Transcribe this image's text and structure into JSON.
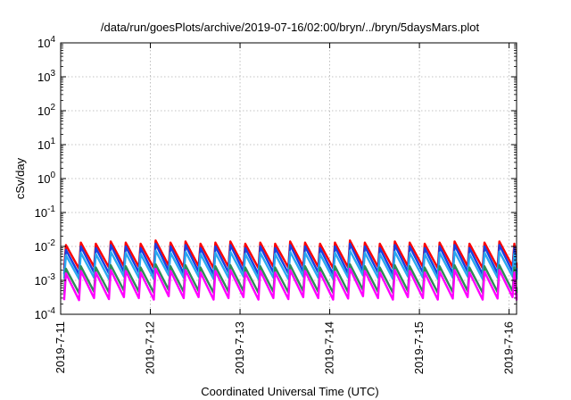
{
  "chart_data": {
    "type": "line",
    "title": "/data/run/goesPlots/archive/2019-07-16/02:00/bryn/../bryn/5daysMars.plot",
    "xlabel": "Coordinated Universal Time (UTC)",
    "ylabel": "cSv/day",
    "yscale": "log",
    "ylim": [
      0.0001,
      10000
    ],
    "xlim": [
      "2019-07-11T00:00",
      "2019-07-16T02:00"
    ],
    "y_ticks": [
      {
        "base": "10",
        "exp": "-4"
      },
      {
        "base": "10",
        "exp": "-3"
      },
      {
        "base": "10",
        "exp": "-2"
      },
      {
        "base": "10",
        "exp": "-1"
      },
      {
        "base": "10",
        "exp": "0"
      },
      {
        "base": "10",
        "exp": "1"
      },
      {
        "base": "10",
        "exp": "2"
      },
      {
        "base": "10",
        "exp": "3"
      },
      {
        "base": "10",
        "exp": "4"
      }
    ],
    "x_ticks": [
      "2019-7-11",
      "2019-7-12",
      "2019-7-13",
      "2019-7-14",
      "2019-7-15",
      "2019-7-16"
    ],
    "grid": true,
    "legend": "none",
    "cycle_hours": 4.0,
    "series": [
      {
        "color": "#ff0000",
        "peaks": [
          0.011,
          0.013,
          0.012,
          0.014,
          0.013,
          0.012,
          0.015,
          0.013,
          0.014,
          0.012,
          0.013,
          0.014,
          0.012,
          0.013,
          0.012,
          0.014,
          0.013,
          0.012,
          0.013,
          0.015,
          0.013,
          0.012,
          0.014,
          0.013,
          0.012,
          0.013,
          0.014,
          0.012,
          0.013,
          0.014,
          0.012,
          0.013,
          0.018,
          0.013,
          0.011
        ],
        "troughs": [
          0.0022,
          0.0025,
          0.0024,
          0.0026,
          0.0025,
          0.0023,
          0.0027,
          0.0024,
          0.0026,
          0.0023,
          0.0025,
          0.0026,
          0.0023,
          0.0025,
          0.0024,
          0.0026,
          0.0025,
          0.0023,
          0.0024,
          0.0027,
          0.0025,
          0.0023,
          0.0026,
          0.0025,
          0.0023,
          0.0024,
          0.0026,
          0.0023,
          0.0024,
          0.0026,
          0.0023,
          0.0024,
          0.0032,
          0.0025,
          0.0022
        ]
      },
      {
        "color": "#1a3fe0",
        "peaks": [
          0.008,
          0.01,
          0.009,
          0.011,
          0.01,
          0.009,
          0.012,
          0.01,
          0.011,
          0.009,
          0.01,
          0.011,
          0.009,
          0.01,
          0.009,
          0.011,
          0.01,
          0.009,
          0.01,
          0.012,
          0.01,
          0.009,
          0.011,
          0.01,
          0.009,
          0.01,
          0.011,
          0.009,
          0.01,
          0.011,
          0.009,
          0.01,
          0.014,
          0.01,
          0.008
        ],
        "troughs": [
          0.0015,
          0.0017,
          0.0016,
          0.0018,
          0.0017,
          0.0015,
          0.0019,
          0.0016,
          0.0018,
          0.0015,
          0.0017,
          0.0018,
          0.0015,
          0.0017,
          0.0016,
          0.0018,
          0.0017,
          0.0015,
          0.0016,
          0.0019,
          0.0017,
          0.0015,
          0.0018,
          0.0017,
          0.0015,
          0.0016,
          0.0018,
          0.0015,
          0.0016,
          0.0018,
          0.0015,
          0.0016,
          0.0022,
          0.0017,
          0.0015
        ]
      },
      {
        "color": "#29a8f0",
        "peaks": [
          0.0055,
          0.0065,
          0.006,
          0.007,
          0.0065,
          0.006,
          0.0075,
          0.0065,
          0.007,
          0.006,
          0.0065,
          0.007,
          0.006,
          0.0065,
          0.006,
          0.007,
          0.0065,
          0.006,
          0.0065,
          0.0075,
          0.0065,
          0.006,
          0.007,
          0.0065,
          0.006,
          0.0065,
          0.007,
          0.006,
          0.0065,
          0.007,
          0.006,
          0.0065,
          0.009,
          0.0065,
          0.0055
        ],
        "troughs": [
          0.0011,
          0.0012,
          0.0011,
          0.0013,
          0.0012,
          0.0011,
          0.0014,
          0.0012,
          0.0013,
          0.0011,
          0.0012,
          0.0013,
          0.0011,
          0.0012,
          0.0011,
          0.0013,
          0.0012,
          0.0011,
          0.0012,
          0.0014,
          0.0012,
          0.0011,
          0.0013,
          0.0012,
          0.0011,
          0.0012,
          0.0013,
          0.0011,
          0.0012,
          0.0013,
          0.0011,
          0.0012,
          0.0016,
          0.0012,
          0.0011
        ]
      },
      {
        "color": "#2e8b57",
        "peaks": [
          0.0022,
          0.0026,
          0.0024,
          0.0028,
          0.0026,
          0.0024,
          0.003,
          0.0026,
          0.0028,
          0.0024,
          0.0026,
          0.0028,
          0.0024,
          0.0026,
          0.0024,
          0.0028,
          0.0026,
          0.0024,
          0.0026,
          0.003,
          0.0026,
          0.0024,
          0.0028,
          0.0026,
          0.0024,
          0.0026,
          0.0028,
          0.0024,
          0.0026,
          0.0028,
          0.0024,
          0.0026,
          0.0034,
          0.0026,
          0.0022
        ],
        "troughs": [
          0.00042,
          0.00046,
          0.00044,
          0.0005,
          0.00046,
          0.00043,
          0.00052,
          0.00046,
          0.00048,
          0.00043,
          0.00046,
          0.00048,
          0.00043,
          0.00046,
          0.00044,
          0.00048,
          0.00046,
          0.00043,
          0.00045,
          0.00052,
          0.00046,
          0.00043,
          0.00048,
          0.00046,
          0.00043,
          0.00045,
          0.00048,
          0.00043,
          0.00045,
          0.00048,
          0.00043,
          0.00045,
          0.0006,
          0.00046,
          0.00042
        ]
      },
      {
        "color": "#ff00ff",
        "peaks": [
          0.0016,
          0.0019,
          0.0017,
          0.002,
          0.0019,
          0.0017,
          0.0022,
          0.0019,
          0.002,
          0.0017,
          0.0019,
          0.002,
          0.0017,
          0.0019,
          0.0017,
          0.002,
          0.0019,
          0.0017,
          0.0018,
          0.0022,
          0.0019,
          0.0017,
          0.002,
          0.0019,
          0.0017,
          0.0018,
          0.002,
          0.0017,
          0.0018,
          0.002,
          0.0017,
          0.0018,
          0.0025,
          0.0019,
          0.0016
        ],
        "troughs": [
          0.00026,
          0.0003,
          0.00028,
          0.00032,
          0.0003,
          0.00027,
          0.00034,
          0.0003,
          0.00032,
          0.00027,
          0.0003,
          0.00032,
          0.00027,
          0.0003,
          0.00028,
          0.00032,
          0.0003,
          0.00027,
          0.00029,
          0.00034,
          0.0003,
          0.00027,
          0.00032,
          0.0003,
          0.00027,
          0.00029,
          0.00032,
          0.00027,
          0.00029,
          0.00032,
          0.00027,
          0.00029,
          0.0004,
          0.0003,
          0.00026
        ]
      }
    ]
  }
}
